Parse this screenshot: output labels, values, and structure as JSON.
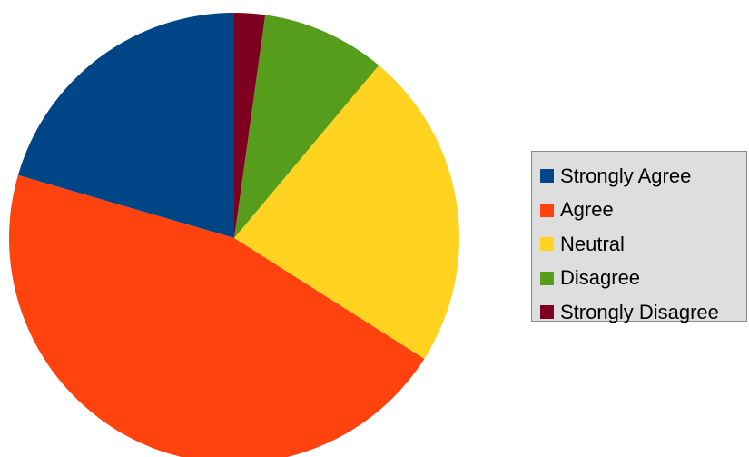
{
  "chart_data": {
    "type": "pie",
    "title": "",
    "categories": [
      "Strongly Agree",
      "Agree",
      "Neutral",
      "Disagree",
      "Strongly Disagree"
    ],
    "values": [
      20.5,
      45.5,
      22.9,
      8.9,
      2.2
    ],
    "unit": "percent",
    "colors": [
      "#004586",
      "#ff420e",
      "#ffd320",
      "#579d1c",
      "#7e0021"
    ],
    "start_angle_deg": 0,
    "direction": "counterclockwise",
    "legend_position": "right"
  }
}
